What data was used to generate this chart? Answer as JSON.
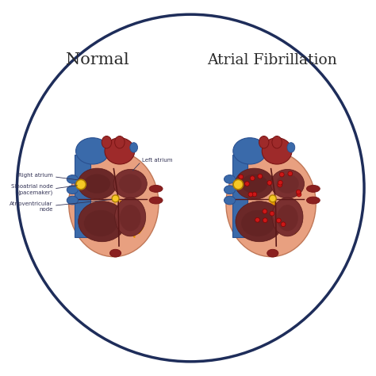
{
  "title_normal": "Normal",
  "title_af": "Atrial Fibrillation",
  "label_right_atrium": "Right atrium",
  "label_left_atrium": "Left atrium",
  "label_sa_node": "Sinoatrial node\n(pacemaker)",
  "label_av_node": "Atrioventricular\nnode",
  "bg_color": "#ffffff",
  "circle_edge_color": "#1e2d5a",
  "heart_outer_color": "#e8a080",
  "blue_vessel_color": "#3a6aaa",
  "blue_vessel_dark": "#2a5090",
  "red_aorta_color": "#9e2a2a",
  "red_aorta_dark": "#7a1515",
  "chamber_dark_brown": "#6b2828",
  "chamber_med_brown": "#7a3030",
  "chamber_lighter": "#8a3838",
  "red_vessel_color": "#8a2020",
  "sa_node_color": "#f5c825",
  "arrow_color": "#e89500",
  "red_dot_color": "#cc1818",
  "text_color": "#2a2a2a",
  "label_color": "#333355",
  "sep_color": "#5a1818"
}
